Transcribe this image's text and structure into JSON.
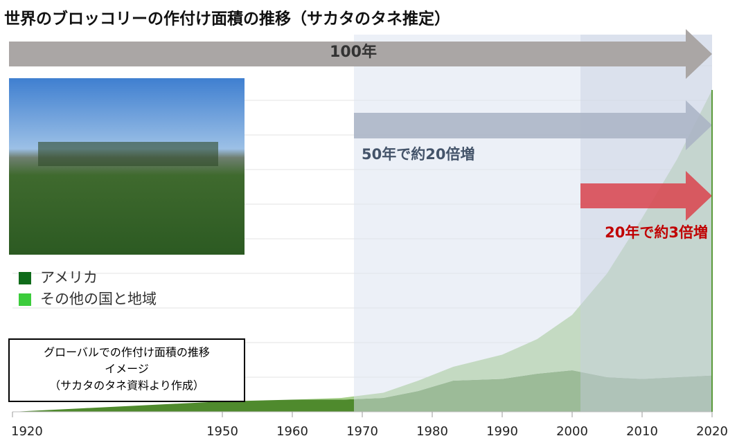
{
  "chart_data": {
    "type": "area",
    "title": "世界のブロッコリーの作付け面積の推移（サカタのタネ推定）",
    "x": [
      1920,
      1930,
      1940,
      1950,
      1960,
      1967,
      1973,
      1978,
      1983,
      1990,
      1995,
      2000,
      2005,
      2010,
      2015,
      2020
    ],
    "series": [
      {
        "name": "アメリカ",
        "color": "#4f8a2d",
        "values": [
          0,
          0.1,
          0.2,
          0.3,
          0.35,
          0.35,
          0.4,
          0.6,
          0.9,
          0.95,
          1.1,
          1.2,
          1.0,
          0.95,
          1.0,
          1.05
        ]
      },
      {
        "name": "その他の国と地域",
        "color": "#a6cf8a",
        "values": [
          0,
          0,
          0,
          0,
          0,
          0.05,
          0.15,
          0.3,
          0.4,
          0.7,
          1.0,
          1.6,
          3.0,
          4.65,
          6.3,
          8.25
        ]
      }
    ],
    "xlim": [
      1920,
      2020
    ],
    "xticks": [
      1920,
      1950,
      1960,
      1970,
      1980,
      1990,
      2000,
      2010,
      2020
    ],
    "ylim": [
      0,
      10
    ],
    "grid": true,
    "annotations": [
      "100年",
      "50年で約20倍増",
      "20年で約3倍増"
    ],
    "note": [
      "グローバルでの作付け面積の推移",
      "イメージ",
      "（サカタのタネ資料より作成）"
    ]
  }
}
